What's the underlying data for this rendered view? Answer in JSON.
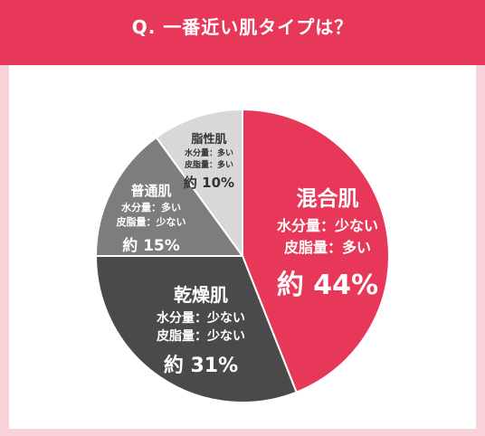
{
  "question": "Q. 一番近い肌タイプは？",
  "colors": {
    "accent": "#e8385a",
    "background": "#f7d3d9"
  },
  "chart_data": {
    "type": "pie",
    "title": "Q. 一番近い肌タイプは？",
    "slices": [
      {
        "name": "混合肌",
        "line1": "水分量：少ない",
        "line2": "皮脂量：多い",
        "pct_label": "約 44%",
        "value": 44,
        "color": "#e8385a"
      },
      {
        "name": "乾燥肌",
        "line1": "水分量：少ない",
        "line2": "皮脂量：少ない",
        "pct_label": "約 31%",
        "value": 31,
        "color": "#4a4a4a"
      },
      {
        "name": "普通肌",
        "line1": "水分量：多い",
        "line2": "皮脂量：少ない",
        "pct_label": "約 15%",
        "value": 15,
        "color": "#7d7d7d"
      },
      {
        "name": "脂性肌",
        "line1": "水分量：多い",
        "line2": "皮脂量：多い",
        "pct_label": "約 10%",
        "value": 10,
        "color": "#d8d8d8"
      }
    ]
  }
}
